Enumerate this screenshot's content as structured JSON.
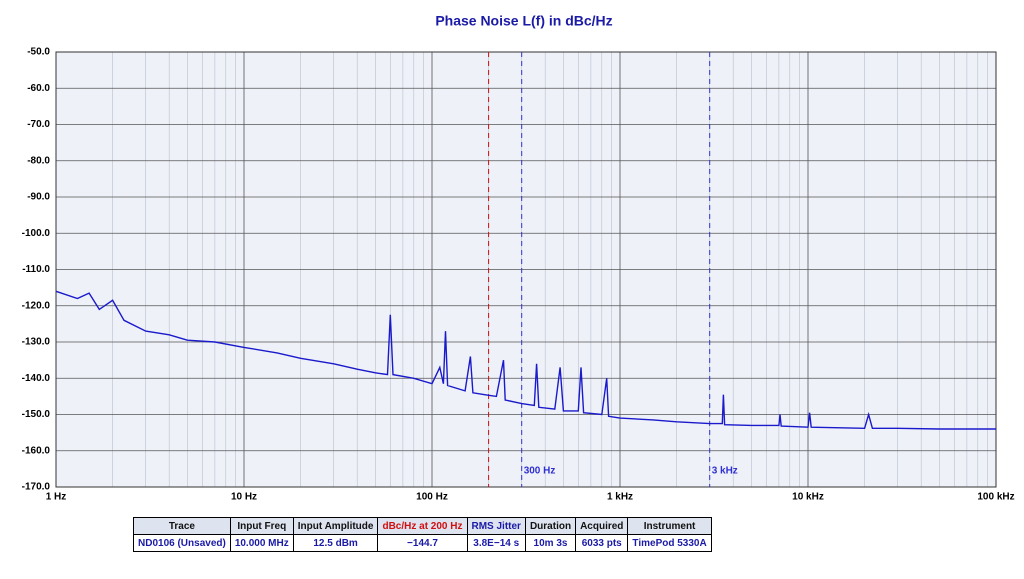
{
  "chart_data": {
    "type": "line",
    "title": "Phase Noise L(f) in dBc/Hz",
    "log_x": true,
    "grid": true,
    "xlim": [
      1,
      100000
    ],
    "xticks": [
      {
        "value": 1,
        "label": "1 Hz"
      },
      {
        "value": 10,
        "label": "10 Hz"
      },
      {
        "value": 100,
        "label": "100 Hz"
      },
      {
        "value": 1000,
        "label": "1 kHz"
      },
      {
        "value": 10000,
        "label": "10 kHz"
      },
      {
        "value": 100000,
        "label": "100 kHz"
      }
    ],
    "ylim": [
      -170,
      -50
    ],
    "yticks": [
      {
        "value": -50,
        "label": "-50.0"
      },
      {
        "value": -60,
        "label": "-60.0"
      },
      {
        "value": -70,
        "label": "-70.0"
      },
      {
        "value": -80,
        "label": "-80.0"
      },
      {
        "value": -90,
        "label": "-90.0"
      },
      {
        "value": -100,
        "label": "-100.0"
      },
      {
        "value": -110,
        "label": "-110.0"
      },
      {
        "value": -120,
        "label": "-120.0"
      },
      {
        "value": -130,
        "label": "-130.0"
      },
      {
        "value": -140,
        "label": "-140.0"
      },
      {
        "value": -150,
        "label": "-150.0"
      },
      {
        "value": -160,
        "label": "-160.0"
      },
      {
        "value": -170,
        "label": "-170.0"
      }
    ],
    "markers": [
      {
        "x": 200,
        "color": "#d01010"
      },
      {
        "x": 300,
        "label": "300 Hz",
        "color": "#3030d0"
      },
      {
        "x": 3000,
        "label": "3 kHz",
        "color": "#3030d0"
      }
    ],
    "series": [
      {
        "name": "ND0106 (Unsaved)",
        "color": "#1a1acc",
        "x": [
          1,
          1.3,
          1.5,
          1.7,
          2.0,
          2.3,
          3,
          4,
          5,
          7,
          10,
          15,
          20,
          30,
          40,
          50,
          58,
          60,
          62,
          80,
          100,
          110,
          115,
          118,
          121,
          150,
          160,
          165,
          200,
          220,
          240,
          245,
          300,
          350,
          360,
          370,
          450,
          480,
          500,
          600,
          620,
          640,
          800,
          850,
          870,
          1000,
          1500,
          2000,
          3000,
          3500,
          3550,
          3600,
          5000,
          7000,
          7100,
          7200,
          10000,
          10200,
          10400,
          20000,
          21000,
          22000,
          30000,
          50000,
          100000
        ],
        "values": [
          -116,
          -118,
          -116.5,
          -121,
          -118.5,
          -124,
          -127,
          -128,
          -129.5,
          -130,
          -131.5,
          -133,
          -134.5,
          -136,
          -137.5,
          -138.5,
          -139,
          -122.5,
          -139,
          -140,
          -141.5,
          -137,
          -141.5,
          -127,
          -142,
          -143.5,
          -134,
          -144,
          -144.7,
          -145,
          -135,
          -146,
          -147,
          -147.5,
          -136,
          -148,
          -148.5,
          -137,
          -149,
          -149,
          -137,
          -149.5,
          -150,
          -140,
          -150.5,
          -151,
          -151.5,
          -152,
          -152.5,
          -152.5,
          -144.5,
          -152.8,
          -153,
          -153,
          -150,
          -153.2,
          -153.5,
          -149.5,
          -153.5,
          -153.8,
          -150,
          -153.8,
          -153.8,
          -154,
          -154
        ]
      }
    ]
  },
  "table": {
    "header": [
      "Trace",
      "Input Freq",
      "Input Amplitude",
      "dBc/Hz at 200 Hz",
      "RMS Jitter",
      "Duration",
      "Acquired",
      "Instrument"
    ],
    "rows": [
      [
        "ND0106 (Unsaved)",
        "10.000 MHz",
        "12.5 dBm",
        "−144.7",
        "3.8E−14 s",
        "10m 3s",
        "6033 pts",
        "TimePod 5330A"
      ]
    ]
  }
}
